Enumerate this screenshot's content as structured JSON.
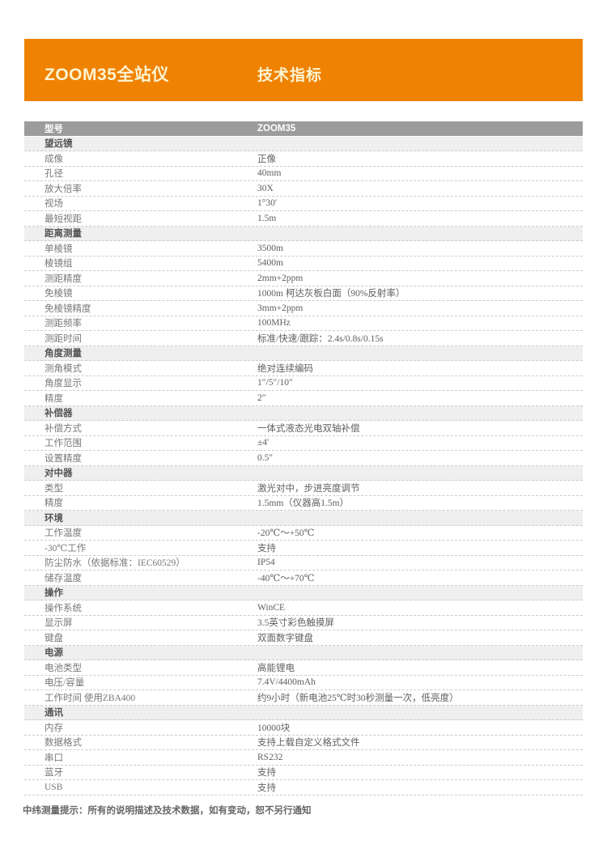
{
  "banner": {
    "title": "ZOOM35全站仪",
    "subtitle": "技术指标",
    "accent_color": "#EF8200",
    "text_color": "#FDF3D2"
  },
  "table": {
    "header_bg_color": "#9C9C9C",
    "section_bg_color": "#EFEFEF",
    "rows": [
      {
        "type": "header",
        "label": "型号",
        "value": "ZOOM35"
      },
      {
        "type": "section",
        "label": "望远镜"
      },
      {
        "type": "data",
        "label": "成像",
        "value": "正像"
      },
      {
        "type": "data",
        "label": "孔径",
        "value": "40mm"
      },
      {
        "type": "data",
        "label": "放大倍率",
        "value": "30X"
      },
      {
        "type": "data",
        "label": "视场",
        "value": "1°30′"
      },
      {
        "type": "data",
        "label": "最短视距",
        "value": "1.5m"
      },
      {
        "type": "section",
        "label": "距离测量"
      },
      {
        "type": "data",
        "label": "单棱镜",
        "value": "3500m"
      },
      {
        "type": "data",
        "label": "棱镜组",
        "value": "5400m"
      },
      {
        "type": "data",
        "label": "测距精度",
        "value": "2mm+2ppm"
      },
      {
        "type": "data",
        "label": "免棱镜",
        "value": "1000m 柯达灰板白面（90%反射率）"
      },
      {
        "type": "data",
        "label": "免棱镜精度",
        "value": "3mm+2ppm"
      },
      {
        "type": "data",
        "label": "测距频率",
        "value": "100MHz"
      },
      {
        "type": "data",
        "label": "测距时间",
        "value": "标准/快速/跟踪：2.4s/0.8s/0.15s"
      },
      {
        "type": "section",
        "label": "角度测量"
      },
      {
        "type": "data",
        "label": "测角模式",
        "value": "绝对连续编码"
      },
      {
        "type": "data",
        "label": "角度显示",
        "value": "1″/5″/10″"
      },
      {
        "type": "data",
        "label": "精度",
        "value": "2″"
      },
      {
        "type": "section",
        "label": "补偿器"
      },
      {
        "type": "data",
        "label": "补偿方式",
        "value": "一体式液态光电双轴补偿"
      },
      {
        "type": "data",
        "label": "工作范围",
        "value": "±4′"
      },
      {
        "type": "data",
        "label": "设置精度",
        "value": "0.5″"
      },
      {
        "type": "section",
        "label": "对中器"
      },
      {
        "type": "data",
        "label": "类型",
        "value": "激光对中，步进亮度调节"
      },
      {
        "type": "data",
        "label": "精度",
        "value": "1.5mm（仪器高1.5m）"
      },
      {
        "type": "section",
        "label": "环境"
      },
      {
        "type": "data",
        "label": "工作温度",
        "value": "-20℃～+50℃"
      },
      {
        "type": "data",
        "label": "-30℃工作",
        "value": "支持"
      },
      {
        "type": "data",
        "label": "防尘防水（依据标准：IEC60529）",
        "value": "IP54"
      },
      {
        "type": "data",
        "label": "储存温度",
        "value": "-40℃～+70℃"
      },
      {
        "type": "section",
        "label": "操作"
      },
      {
        "type": "data",
        "label": "操作系统",
        "value": "WinCE"
      },
      {
        "type": "data",
        "label": "显示屏",
        "value": "3.5英寸彩色触摸屏"
      },
      {
        "type": "data",
        "label": "键盘",
        "value": "双面数字键盘"
      },
      {
        "type": "section",
        "label": "电源"
      },
      {
        "type": "data",
        "label": "电池类型",
        "value": "高能锂电"
      },
      {
        "type": "data",
        "label": "电压/容量",
        "value": "7.4V/4400mAh"
      },
      {
        "type": "data",
        "label": "工作时间 使用ZBA400",
        "value": "约9小时（新电池25℃时30秒测量一次，低亮度）"
      },
      {
        "type": "section",
        "label": "通讯"
      },
      {
        "type": "data",
        "label": "内存",
        "value": "10000块"
      },
      {
        "type": "data",
        "label": "数据格式",
        "value": "支持上载自定义格式文件"
      },
      {
        "type": "data",
        "label": "串口",
        "value": "RS232"
      },
      {
        "type": "data",
        "label": "蓝牙",
        "value": "支持"
      },
      {
        "type": "data",
        "label": "USB",
        "value": "支持"
      }
    ]
  },
  "footer": {
    "note": "中纬测量提示：所有的说明描述及技术数据，如有变动，恕不另行通知"
  }
}
